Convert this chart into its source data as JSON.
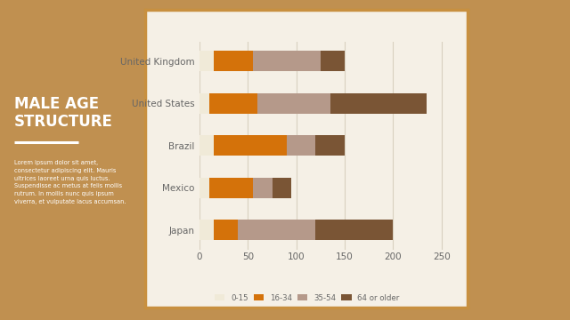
{
  "countries": [
    "Japan",
    "Mexico",
    "Brazil",
    "United States",
    "United Kingdom"
  ],
  "age_groups": [
    "0-15",
    "16-34",
    "35-54",
    "64 or older"
  ],
  "colors": [
    "#f0ead8",
    "#d4720a",
    "#b5998a",
    "#7a5535"
  ],
  "values": {
    "0-15": [
      15,
      10,
      15,
      10,
      15
    ],
    "16-34": [
      25,
      45,
      75,
      50,
      40
    ],
    "35-54": [
      80,
      20,
      30,
      75,
      70
    ],
    "64 or older": [
      80,
      20,
      30,
      100,
      25
    ]
  },
  "xlim": [
    0,
    265
  ],
  "xticks": [
    0,
    50,
    100,
    150,
    200,
    250
  ],
  "panel_bg": "#f5f0e6",
  "grid_color": "#d8d0c0",
  "border_color": "#c89040",
  "title_text": "MALE AGE\nSTRUCTURE",
  "left_bg": "#a87020",
  "right_bg": "#c09050",
  "outer_bg": "#c09050",
  "body_text": "Lorem ipsum dolor sit amet,\nconsectetur adipiscing elit. Mauris\nultrices laoreet urna quis luctus.\nSuspendisse ac metus at felis mollis\nrutrum. In mollis nunc quis ipsum\nviverra, et vulputate lacus accumsan.",
  "label_color": "#666666",
  "tick_fontsize": 7.5,
  "label_fontsize": 7.5
}
